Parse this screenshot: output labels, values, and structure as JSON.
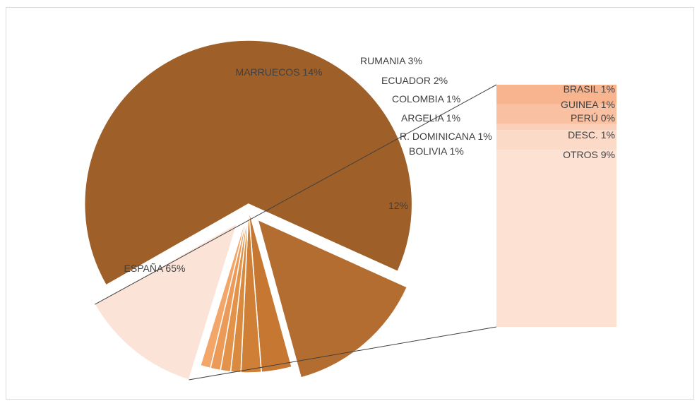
{
  "chart_data": {
    "type": "pie",
    "subtype": "bar-of-pie",
    "pie": [
      {
        "name": "ESPAÑA",
        "value": 65,
        "label": "ESPAÑA 65%",
        "color": "#9e5f28"
      },
      {
        "name": "MARRUECOS",
        "value": 14,
        "label": "MARRUECOS 14%",
        "color": "#b46d30"
      },
      {
        "name": "RUMANIA",
        "value": 3,
        "label": "RUMANIA 3%",
        "color": "#c67732"
      },
      {
        "name": "ECUADOR",
        "value": 2,
        "label": "ECUADOR 2%",
        "color": "#d08036"
      },
      {
        "name": "COLOMBIA",
        "value": 1,
        "label": "COLOMBIA 1%",
        "color": "#da8a3e"
      },
      {
        "name": "ARGELIA",
        "value": 1,
        "label": "ARGELIA 1%",
        "color": "#e3924a"
      },
      {
        "name": "R. DOMINICANA",
        "value": 1,
        "label": "R. DOMINICANA 1%",
        "color": "#ec9a58"
      },
      {
        "name": "BOLIVIA",
        "value": 1,
        "label": "BOLIVIA 1%",
        "color": "#f3a66a"
      },
      {
        "name": "OTHER_GROUP",
        "value": 12,
        "label": "12%",
        "color": "#fbe3d8"
      }
    ],
    "bar": [
      {
        "name": "BRASIL",
        "value": 1,
        "label": "BRASIL 1%",
        "color": "#f7b48e"
      },
      {
        "name": "GUINEA",
        "value": 1,
        "label": "GUINEA 1%",
        "color": "#f9c1a2"
      },
      {
        "name": "PERÚ",
        "value": 0.3,
        "label": "PERÚ 0%",
        "color": "#fbcfb8"
      },
      {
        "name": "DESC.",
        "value": 1,
        "label": "DESC. 1%",
        "color": "#fcdac8"
      },
      {
        "name": "OTROS",
        "value": 9,
        "label": "OTROS 9%",
        "color": "#fde1d3"
      }
    ]
  }
}
